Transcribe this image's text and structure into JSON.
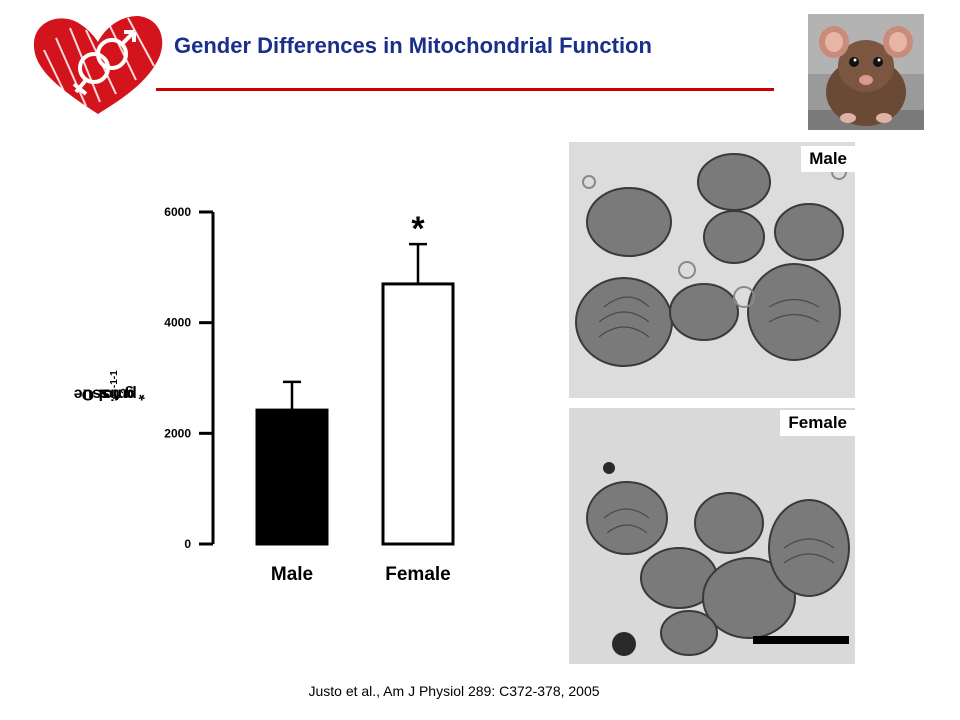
{
  "header": {
    "title": "Gender Differences in Mitochondrial Function",
    "logo_icon": "heart-gender-symbols-icon",
    "photo_icon": "rat-photo-icon",
    "title_color": "#1a2f8a",
    "rule_color": "#cc0000"
  },
  "chart_data": {
    "type": "bar",
    "categories": [
      "Male",
      "Female"
    ],
    "values": [
      2420,
      4700
    ],
    "errors": [
      510,
      720
    ],
    "ylim": [
      0,
      6000
    ],
    "yticks": [
      "0",
      "2000",
      "4000",
      "6000"
    ],
    "ylabel": "pmol O2 * s-1 * g tissue-1",
    "bar_fills": [
      "#000000",
      "#ffffff"
    ],
    "significance": [
      null,
      "*"
    ]
  },
  "ylabel_parts": {
    "a": "pmol O",
    "sub": "2",
    "b": " * s",
    "sup1": "-1",
    "c": " * g tissue",
    "sup2": "-1"
  },
  "micrographs": {
    "male_label": "Male",
    "female_label": "Female"
  },
  "citation": "Justo et al., Am J Physiol 289: C372-378, 2005"
}
